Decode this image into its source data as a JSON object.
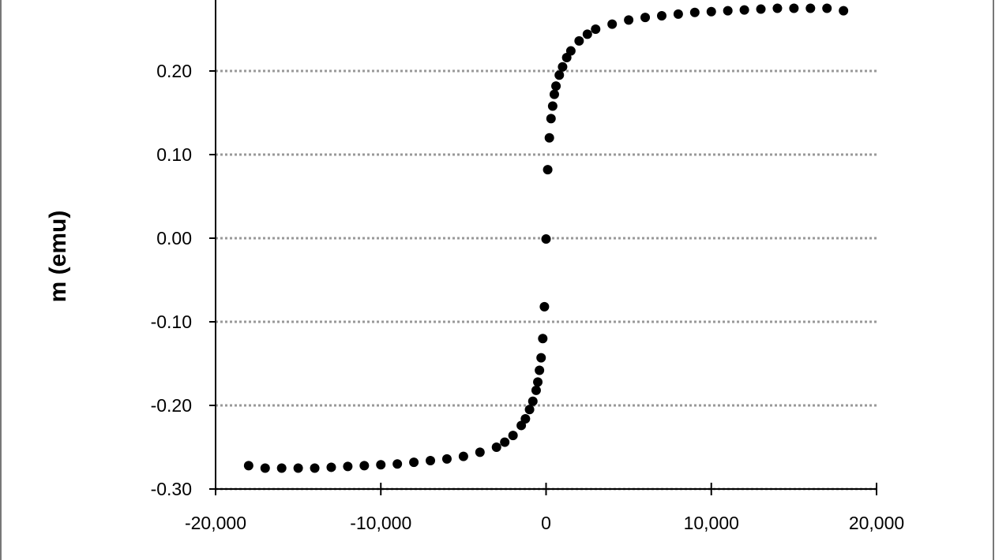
{
  "chart_data": {
    "type": "scatter",
    "y_label": "m (emu)",
    "color": "#000000",
    "grid": true,
    "xlim": [
      -20000,
      20000
    ],
    "xticks": [
      {
        "value": -20000,
        "label": "-20,000"
      },
      {
        "value": -10000,
        "label": "-10,000"
      },
      0,
      {
        "value": 10000,
        "label": "10,000"
      },
      {
        "value": 20000,
        "label": "20,000"
      }
    ],
    "ylim": [
      -0.3,
      0.3
    ],
    "yticks": [
      {
        "value": -0.3,
        "label": "-0.30"
      },
      {
        "value": -0.2,
        "label": "-0.20"
      },
      {
        "value": -0.1,
        "label": "-0.10"
      },
      {
        "value": 0,
        "label": "0.00"
      },
      {
        "value": 0.1,
        "label": "0.10"
      },
      {
        "value": 0.2,
        "label": "0.20"
      }
    ],
    "x": [
      -18000,
      -17000,
      -16000,
      -15000,
      -14000,
      -13000,
      -12000,
      -11000,
      -10000,
      -9000,
      -8000,
      -7000,
      -6000,
      -5000,
      -4000,
      -3000,
      -2500,
      -2000,
      -1500,
      -1250,
      -1000,
      -800,
      -600,
      -500,
      -400,
      -300,
      -200,
      -100,
      0,
      100,
      200,
      300,
      400,
      500,
      600,
      800,
      1000,
      1250,
      1500,
      2000,
      2500,
      3000,
      4000,
      5000,
      6000,
      7000,
      8000,
      9000,
      10000,
      11000,
      12000,
      13000,
      14000,
      15000,
      16000,
      17000,
      18000
    ],
    "values": [
      -0.272,
      -0.275,
      -0.275,
      -0.275,
      -0.275,
      -0.274,
      -0.273,
      -0.272,
      -0.271,
      -0.27,
      -0.268,
      -0.266,
      -0.264,
      -0.261,
      -0.256,
      -0.25,
      -0.244,
      -0.236,
      -0.224,
      -0.216,
      -0.205,
      -0.195,
      -0.182,
      -0.172,
      -0.158,
      -0.143,
      -0.12,
      -0.082,
      -0.001,
      0.082,
      0.12,
      0.143,
      0.158,
      0.172,
      0.182,
      0.195,
      0.205,
      0.216,
      0.224,
      0.236,
      0.244,
      0.25,
      0.256,
      0.261,
      0.264,
      0.266,
      0.268,
      0.27,
      0.271,
      0.272,
      0.273,
      0.274,
      0.275,
      0.275,
      0.275,
      0.275,
      0.272
    ]
  }
}
